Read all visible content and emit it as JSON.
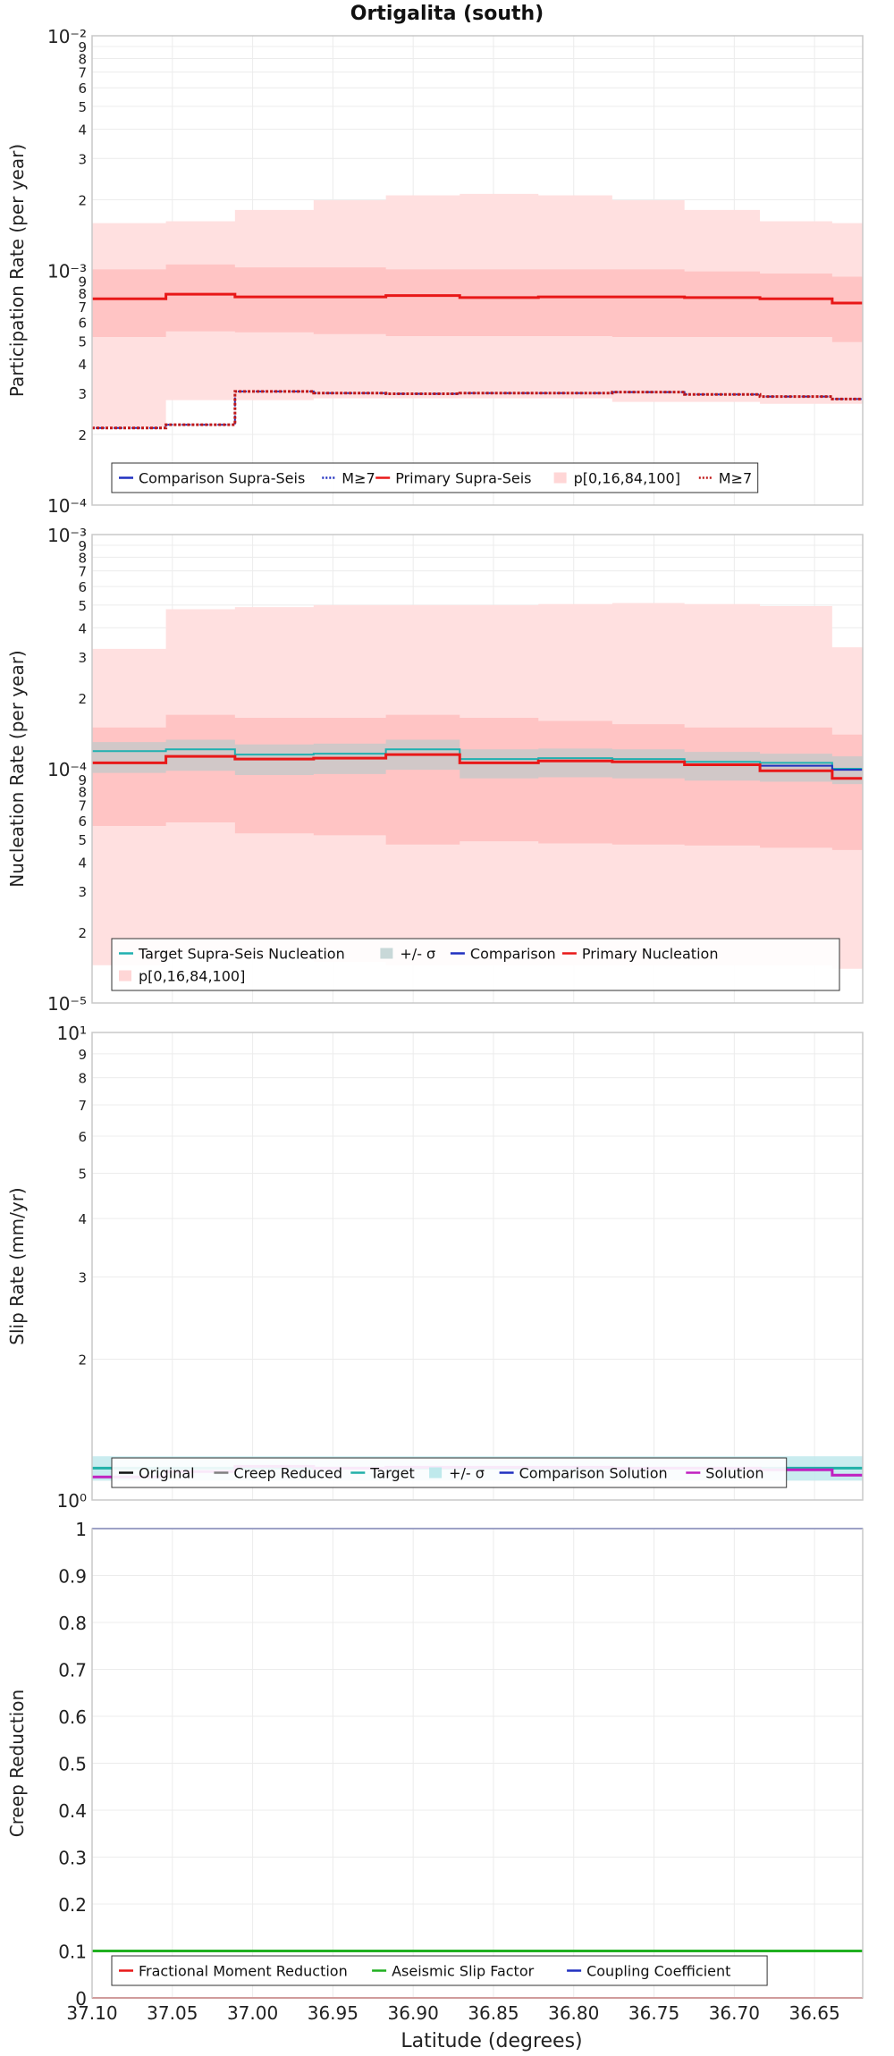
{
  "figure_title": "Ortigalita (south)",
  "x_axis": {
    "label": "Latitude (degrees)",
    "ticks": [
      "37.10",
      "37.05",
      "37.00",
      "36.95",
      "36.90",
      "36.85",
      "36.80",
      "36.75",
      "36.70",
      "36.65"
    ],
    "range": [
      37.1,
      36.62
    ]
  },
  "chart_data": [
    {
      "type": "line",
      "scale": "log",
      "ylabel": "Participation Rate (per year)",
      "ylim": [
        0.0001,
        0.01
      ],
      "x_edges": [
        37.1,
        37.054,
        37.011,
        36.962,
        36.917,
        36.871,
        36.822,
        36.776,
        36.731,
        36.684,
        36.639,
        36.62
      ],
      "series": [
        {
          "name": "Comparison Supra-Seis",
          "values": [
            0.000757,
            0.000792,
            0.000771,
            0.000771,
            0.000781,
            0.000766,
            0.000771,
            0.000771,
            0.000766,
            0.000757,
            0.000726,
            0.000726
          ]
        },
        {
          "name": "M≥7 (comparison)",
          "values": [
            0.000213,
            0.00022,
            0.000305,
            0.0003,
            0.000298,
            0.0003,
            0.0003,
            0.000303,
            0.000296,
            0.00029,
            0.000283,
            0.000283
          ]
        },
        {
          "name": "Primary Supra-Seis",
          "values": [
            0.000757,
            0.000792,
            0.000771,
            0.000771,
            0.000781,
            0.000766,
            0.000771,
            0.000771,
            0.000766,
            0.000757,
            0.000726,
            0.000726
          ]
        },
        {
          "name": "M≥7",
          "values": [
            0.000213,
            0.00022,
            0.000305,
            0.0003,
            0.000298,
            0.0003,
            0.0003,
            0.000303,
            0.000296,
            0.00029,
            0.000283,
            0.000283
          ]
        }
      ],
      "bands": [
        {
          "name": "p[0,16,84,100] outer",
          "low": [
            0.000215,
            0.00028,
            0.00028,
            0.000285,
            0.000285,
            0.000285,
            0.000285,
            0.000275,
            0.000275,
            0.00027,
            0.00027,
            0.00027
          ],
          "high": [
            0.00159,
            0.00162,
            0.00181,
            0.00199,
            0.00209,
            0.00212,
            0.00209,
            0.00199,
            0.00181,
            0.00162,
            0.00159,
            0.00159
          ]
        },
        {
          "name": "p[0,16,84,100] inner",
          "low": [
            0.00052,
            0.00055,
            0.000545,
            0.000535,
            0.000525,
            0.000525,
            0.000525,
            0.00052,
            0.00052,
            0.00052,
            0.000495,
            0.000495
          ],
          "high": [
            0.00101,
            0.00106,
            0.00103,
            0.00103,
            0.00101,
            0.00101,
            0.00101,
            0.00101,
            0.00099,
            0.00097,
            0.00094,
            0.00094
          ]
        }
      ],
      "legend": {
        "placement": "bottom",
        "entries": [
          {
            "label": "Comparison Supra-Seis",
            "color": "#2030c0",
            "style": "line"
          },
          {
            "label": "M≥7",
            "color": "#2030c0",
            "style": "dotted"
          },
          {
            "label": "Primary Supra-Seis",
            "color": "#e81818",
            "style": "line"
          },
          {
            "label": "p[0,16,84,100]",
            "color": "#ffd6d6",
            "style": "patch"
          },
          {
            "label": "M≥7",
            "color": "#c01818",
            "style": "dotted"
          }
        ]
      }
    },
    {
      "type": "line",
      "scale": "log",
      "ylabel": "Nucleation Rate (per year)",
      "ylim": [
        1e-05,
        0.001
      ],
      "x_edges": [
        37.1,
        37.054,
        37.011,
        36.962,
        36.917,
        36.871,
        36.822,
        36.776,
        36.731,
        36.684,
        36.639,
        36.62
      ],
      "series": [
        {
          "name": "Target Supra-Seis Nucleation",
          "values": [
            0.000119,
            0.000121,
            0.000115,
            0.000116,
            0.000121,
            0.00011,
            0.000111,
            0.00011,
            0.000107,
            0.000106,
            0.0001,
            0.0001
          ]
        },
        {
          "name": "Comparison",
          "values": [
            0.000106,
            0.000113,
            0.00011,
            0.000111,
            0.000115,
            0.000106,
            0.000108,
            0.000107,
            0.000104,
            0.000103,
            9.9e-05,
            9.9e-05
          ]
        },
        {
          "name": "Primary Nucleation",
          "values": [
            0.000106,
            0.000113,
            0.00011,
            0.000111,
            0.000115,
            0.000106,
            0.000108,
            0.000107,
            0.000104,
            9.8e-05,
            9.1e-05,
            9.1e-05
          ]
        }
      ],
      "bands": [
        {
          "name": "p[0,16,84,100] outer",
          "low": [
            1.45e-05,
            1.6e-05,
            1.55e-05,
            1.5e-05,
            1.45e-05,
            1.45e-05,
            1.45e-05,
            1.45e-05,
            1.45e-05,
            1.45e-05,
            1.4e-05,
            1.4e-05
          ],
          "high": [
            0.000325,
            0.00048,
            0.00049,
            0.0005,
            0.0005,
            0.0005,
            0.000505,
            0.00051,
            0.000505,
            0.000495,
            0.00033,
            0.00033
          ]
        },
        {
          "name": "p[0,16,84,100] inner",
          "low": [
            5.7e-05,
            5.9e-05,
            5.3e-05,
            5.2e-05,
            4.75e-05,
            4.9e-05,
            4.8e-05,
            4.75e-05,
            4.7e-05,
            4.6e-05,
            4.5e-05,
            4.5e-05
          ],
          "high": [
            0.00015,
            0.00017,
            0.000165,
            0.000165,
            0.00017,
            0.000165,
            0.00016,
            0.000155,
            0.00015,
            0.00015,
            0.00014,
            0.00014
          ]
        },
        {
          "name": "+/- σ",
          "low": [
            9.6e-05,
            9.8e-05,
            9.4e-05,
            9.5e-05,
            9.9e-05,
            9.1e-05,
            9.2e-05,
            9.1e-05,
            8.9e-05,
            8.8e-05,
            8.6e-05,
            8.6e-05
          ],
          "high": [
            0.00013,
            0.000133,
            0.000127,
            0.000128,
            0.000133,
            0.000121,
            0.000122,
            0.000121,
            0.000118,
            0.000116,
            0.000113,
            0.000113
          ]
        }
      ],
      "legend": {
        "placement": "bottom",
        "entries": [
          {
            "label": "Target Supra-Seis Nucleation",
            "color": "#20b0b0",
            "style": "line"
          },
          {
            "label": "+/- σ",
            "color": "#c8d8d8",
            "style": "patch"
          },
          {
            "label": "Comparison",
            "color": "#2030c0",
            "style": "line"
          },
          {
            "label": "Primary Nucleation",
            "color": "#e81818",
            "style": "line"
          },
          {
            "label": "p[0,16,84,100]",
            "color": "#ffd6d6",
            "style": "patch"
          }
        ]
      }
    },
    {
      "type": "line",
      "scale": "log",
      "ylabel": "Slip Rate (mm/yr)",
      "ylim": [
        1,
        10
      ],
      "x_edges": [
        37.1,
        37.054,
        37.011,
        36.962,
        36.917,
        36.871,
        36.822,
        36.776,
        36.731,
        36.684,
        36.639,
        36.62
      ],
      "series": [
        {
          "name": "Original",
          "values": [
            1.17,
            1.17,
            1.17,
            1.17,
            1.17,
            1.17,
            1.17,
            1.17,
            1.17,
            1.17,
            1.17,
            1.17
          ]
        },
        {
          "name": "Creep Reduced",
          "values": [
            1.17,
            1.17,
            1.17,
            1.17,
            1.17,
            1.17,
            1.17,
            1.17,
            1.17,
            1.17,
            1.17,
            1.17
          ]
        },
        {
          "name": "Target",
          "values": [
            1.17,
            1.17,
            1.17,
            1.17,
            1.17,
            1.17,
            1.17,
            1.17,
            1.17,
            1.17,
            1.17,
            1.17
          ]
        },
        {
          "name": "Comparison Solution",
          "values": [
            1.12,
            1.15,
            1.18,
            1.17,
            1.175,
            1.175,
            1.175,
            1.17,
            1.17,
            1.16,
            1.13,
            1.13
          ]
        },
        {
          "name": "Solution",
          "values": [
            1.12,
            1.15,
            1.18,
            1.17,
            1.175,
            1.175,
            1.175,
            1.17,
            1.17,
            1.16,
            1.13,
            1.13
          ]
        }
      ],
      "bands": [
        {
          "name": "+/- σ",
          "low": [
            1.1,
            1.1,
            1.1,
            1.1,
            1.1,
            1.1,
            1.1,
            1.1,
            1.1,
            1.1,
            1.1,
            1.1
          ],
          "high": [
            1.24,
            1.24,
            1.24,
            1.24,
            1.24,
            1.24,
            1.24,
            1.24,
            1.24,
            1.24,
            1.24,
            1.24
          ]
        }
      ],
      "legend": {
        "placement": "bottom",
        "entries": [
          {
            "label": "Original",
            "color": "#111111",
            "style": "line"
          },
          {
            "label": "Creep Reduced",
            "color": "#808080",
            "style": "line"
          },
          {
            "label": "Target",
            "color": "#20b0a8",
            "style": "line"
          },
          {
            "label": "+/- σ",
            "color": "#bfe9ec",
            "style": "patch"
          },
          {
            "label": "Comparison Solution",
            "color": "#2030c0",
            "style": "line"
          },
          {
            "label": "Solution",
            "color": "#c020c0",
            "style": "line"
          }
        ]
      }
    },
    {
      "type": "line",
      "scale": "linear",
      "ylabel": "Creep Reduction",
      "ylim": [
        0,
        1
      ],
      "yticks": [
        "0",
        "0.1",
        "0.2",
        "0.3",
        "0.4",
        "0.5",
        "0.6",
        "0.7",
        "0.8",
        "0.9",
        "1"
      ],
      "x_edges": [
        37.1,
        36.62
      ],
      "series": [
        {
          "name": "Fractional Moment Reduction",
          "values": [
            0.0,
            0.0
          ]
        },
        {
          "name": "Aseismic Slip Factor",
          "values": [
            0.1,
            0.1
          ]
        },
        {
          "name": "Coupling Coefficient",
          "values": [
            1.0,
            1.0
          ]
        }
      ],
      "legend": {
        "placement": "bottom",
        "entries": [
          {
            "label": "Fractional Moment Reduction",
            "color": "#e81818",
            "style": "line"
          },
          {
            "label": "Aseismic Slip Factor",
            "color": "#20b020",
            "style": "line"
          },
          {
            "label": "Coupling Coefficient",
            "color": "#2030c0",
            "style": "line"
          }
        ]
      }
    }
  ]
}
